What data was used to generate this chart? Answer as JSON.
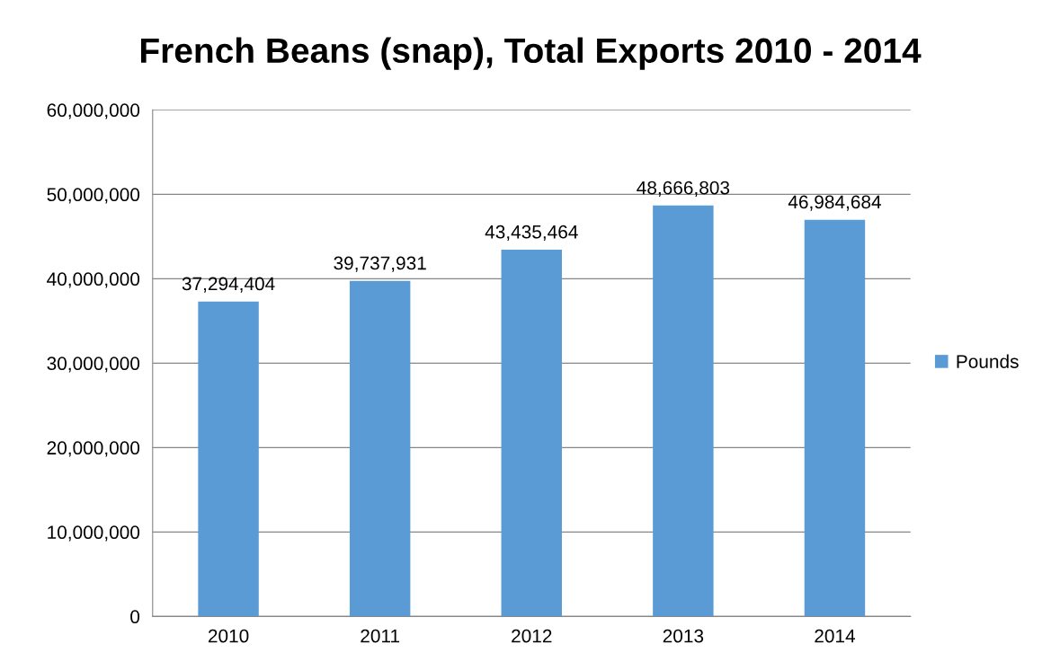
{
  "chart_data": {
    "type": "bar",
    "title": "French Beans (snap), Total Exports 2010 - 2014",
    "categories": [
      "2010",
      "2011",
      "2012",
      "2013",
      "2014"
    ],
    "series": [
      {
        "name": "Pounds",
        "color": "#5b9bd5",
        "values": [
          37294404,
          39737931,
          43435464,
          48666803,
          46984684
        ],
        "value_labels": [
          "37,294,404",
          "39,737,931",
          "43,435,464",
          "48,666,803",
          "46,984,684"
        ]
      }
    ],
    "ylim": [
      0,
      60000000
    ],
    "yticks": [
      {
        "value": 0,
        "label": "0"
      },
      {
        "value": 10000000,
        "label": "10,000,000"
      },
      {
        "value": 20000000,
        "label": "20,000,000"
      },
      {
        "value": 30000000,
        "label": "30,000,000"
      },
      {
        "value": 40000000,
        "label": "40,000,000"
      },
      {
        "value": 50000000,
        "label": "50,000,000"
      },
      {
        "value": 60000000,
        "label": "60,000,000"
      }
    ],
    "grid": "y",
    "legend": "right"
  }
}
